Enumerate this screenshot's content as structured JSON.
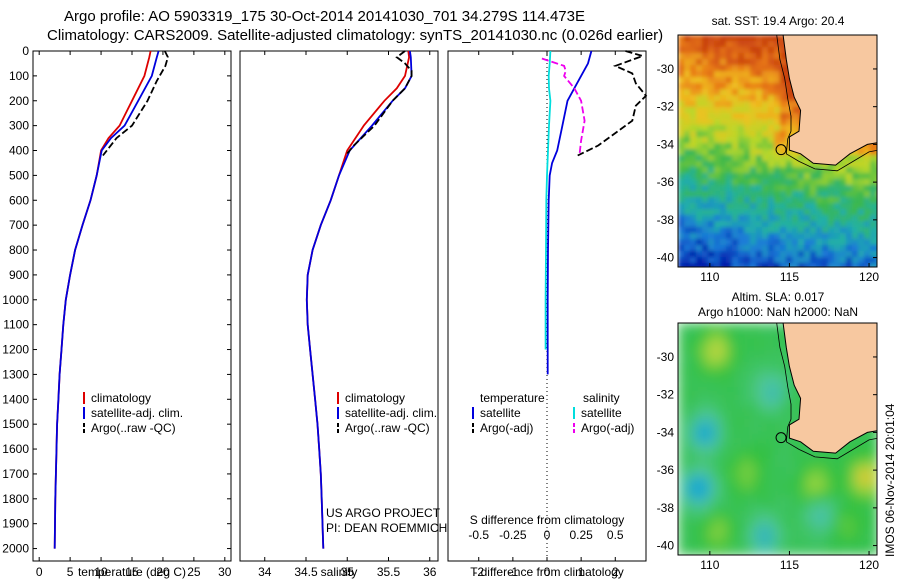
{
  "header": {
    "title_line1": "Argo profile: AO 5903319_175 30-Oct-2014 20141030_701 34.279S 114.473E",
    "title_line2": "Climatology: CARS2009. Satellite-adjusted climatology: synTS_20141030.nc (0.026d earlier)"
  },
  "footer_stamp": "IMOS 06-Nov-2014 20:01:04",
  "colors": {
    "climatology": "#dd0000",
    "satellite": "#0000dd",
    "argo": "#000000",
    "salinity_satellite": "#00dddd",
    "salinity_argo": "#ee00ee",
    "land": "#f7c8a0"
  },
  "chart_data": [
    {
      "type": "line",
      "id": "temperature_profile",
      "xlabel": "temperature (deg C)",
      "ylabel": "",
      "xlim": [
        -1,
        31
      ],
      "ylim": [
        2050,
        0
      ],
      "xticks": [
        0,
        5,
        10,
        15,
        20,
        25,
        30
      ],
      "yticks": [
        0,
        100,
        200,
        300,
        400,
        500,
        600,
        700,
        800,
        900,
        1000,
        1100,
        1200,
        1300,
        1400,
        1500,
        1600,
        1700,
        1800,
        1900,
        2000
      ],
      "legend": [
        "climatology",
        "satellite-adj. clim.",
        "Argo(..raw -QC)"
      ],
      "legend_position": "bottom-center",
      "series": [
        {
          "name": "climatology",
          "style": "solid",
          "color": "#dd0000",
          "x": [
            18.0,
            17.8,
            17.0,
            15.0,
            13.0,
            11.2,
            10.0,
            9.3,
            8.3,
            7.0,
            5.8,
            5.0,
            4.3,
            3.9,
            3.6,
            3.3,
            3.1,
            2.9,
            2.8,
            2.7,
            2.6,
            2.5
          ],
          "y": [
            0,
            25,
            100,
            200,
            300,
            350,
            400,
            500,
            600,
            700,
            800,
            900,
            1000,
            1100,
            1200,
            1300,
            1400,
            1500,
            1600,
            1700,
            1800,
            2000
          ]
        },
        {
          "name": "satellite-adj. clim.",
          "style": "solid",
          "color": "#0000dd",
          "x": [
            19.3,
            19.0,
            18.2,
            16.0,
            13.8,
            11.6,
            10.1,
            9.3,
            8.3,
            7.0,
            5.8,
            5.0,
            4.3,
            3.9,
            3.6,
            3.3,
            3.1,
            2.9,
            2.8,
            2.7,
            2.6,
            2.5
          ],
          "y": [
            0,
            25,
            100,
            200,
            300,
            350,
            400,
            500,
            600,
            700,
            800,
            900,
            1000,
            1100,
            1200,
            1300,
            1400,
            1500,
            1600,
            1700,
            1800,
            2000
          ]
        },
        {
          "name": "Argo(..raw -QC)",
          "style": "dashed",
          "color": "#000000",
          "x": [
            20.3,
            20.8,
            20.4,
            19.0,
            17.5,
            15.0,
            12.5,
            10.3
          ],
          "y": [
            0,
            25,
            60,
            120,
            200,
            300,
            350,
            420
          ]
        }
      ]
    },
    {
      "type": "line",
      "id": "salinity_profile",
      "xlabel": "salinity",
      "ylabel": "",
      "xlim": [
        33.7,
        36.1
      ],
      "ylim": [
        2050,
        0
      ],
      "xticks": [
        34,
        34.5,
        35,
        35.5,
        36
      ],
      "legend": [
        "climatology",
        "satellite-adj. clim.",
        "Argo(..raw -QC)"
      ],
      "legend_position": "bottom-center",
      "annotation_lines": [
        "US ARGO PROJECT",
        "PI: DEAN ROEMMICH"
      ],
      "series": [
        {
          "name": "climatology",
          "style": "solid",
          "color": "#dd0000",
          "x": [
            35.74,
            35.75,
            35.7,
            35.6,
            35.45,
            35.2,
            35.0,
            34.9,
            34.8,
            34.68,
            34.58,
            34.52,
            34.51,
            34.52,
            34.55,
            34.58,
            34.61,
            34.64,
            34.66,
            34.68,
            34.69,
            34.71
          ],
          "y": [
            0,
            25,
            100,
            150,
            200,
            300,
            400,
            500,
            600,
            700,
            800,
            900,
            1000,
            1100,
            1200,
            1300,
            1400,
            1500,
            1600,
            1700,
            1800,
            2000
          ]
        },
        {
          "name": "satellite-adj. clim.",
          "style": "solid",
          "color": "#0000dd",
          "x": [
            35.76,
            35.77,
            35.78,
            35.7,
            35.55,
            35.3,
            35.03,
            34.9,
            34.8,
            34.68,
            34.58,
            34.52,
            34.51,
            34.52,
            34.55,
            34.58,
            34.61,
            34.64,
            34.66,
            34.68,
            34.69,
            34.71
          ],
          "y": [
            0,
            25,
            100,
            150,
            200,
            300,
            400,
            500,
            600,
            700,
            800,
            900,
            1000,
            1100,
            1200,
            1300,
            1400,
            1500,
            1600,
            1700,
            1800,
            2000
          ]
        },
        {
          "name": "Argo(..raw -QC)",
          "style": "dashed",
          "color": "#000000",
          "x": [
            35.7,
            35.6,
            35.7,
            35.78,
            35.78,
            35.7,
            35.55,
            35.33,
            35.08,
            34.98
          ],
          "y": [
            0,
            25,
            50,
            80,
            100,
            150,
            200,
            300,
            380,
            420
          ]
        }
      ]
    },
    {
      "type": "line",
      "id": "difference_profile",
      "xlabel": "T difference from climatology",
      "xlabel_top": "S difference from climatology",
      "xlim": [
        -2.9,
        2.9
      ],
      "ylim": [
        2050,
        0
      ],
      "xticks": [
        -2,
        -1,
        0,
        1,
        2
      ],
      "xticks_salinity": [
        -0.5,
        -0.25,
        0,
        0.25,
        0.5
      ],
      "legend_title_temperature": "temperature",
      "legend_title_salinity": "salinity",
      "legend": [
        "satellite",
        "Argo(-adj)",
        "satellite",
        "Argo(-adj)"
      ],
      "legend_position": "bottom",
      "series": [
        {
          "name": "satellite",
          "group": "temperature",
          "style": "solid",
          "color": "#0000dd",
          "x": [
            1.3,
            1.2,
            1.0,
            0.8,
            0.6,
            0.45,
            0.3,
            0.15,
            0.08,
            0.05,
            0.03,
            0.02,
            0.02,
            0.02
          ],
          "y": [
            0,
            50,
            100,
            150,
            200,
            300,
            400,
            450,
            500,
            600,
            800,
            1000,
            1200,
            1300
          ]
        },
        {
          "name": "satellite",
          "group": "salinity",
          "style": "solid",
          "color": "#00dddd",
          "x": [
            0.1,
            0.08,
            0.05,
            0.06,
            0.1,
            0.06,
            0.03,
            0.0,
            -0.02,
            -0.03,
            -0.04,
            -0.04
          ],
          "y": [
            0,
            50,
            100,
            150,
            200,
            300,
            400,
            500,
            600,
            800,
            1000,
            1200
          ]
        },
        {
          "name": "Argo(-adj)",
          "group": "temperature",
          "style": "dashed",
          "color": "#000000",
          "x": [
            2.3,
            2.8,
            2.0,
            2.5,
            2.6,
            2.9,
            2.6,
            2.5,
            2.0,
            1.5,
            0.9
          ],
          "y": [
            0,
            20,
            60,
            90,
            130,
            180,
            220,
            280,
            330,
            380,
            420
          ]
        },
        {
          "name": "Argo(-adj)",
          "group": "salinity",
          "style": "dashed",
          "color": "#ee00ee",
          "x": [
            -0.15,
            0.5,
            0.55,
            0.5,
            0.8,
            1.0,
            1.1,
            1.0,
            0.95
          ],
          "y": [
            30,
            60,
            80,
            100,
            150,
            200,
            280,
            360,
            420
          ]
        }
      ]
    },
    {
      "type": "heatmap",
      "id": "sst_map",
      "title": "sat. SST: 19.4  Argo: 20.4",
      "xlim": [
        108,
        120.5
      ],
      "ylim": [
        -40.5,
        -28.2
      ],
      "xticks": [
        110,
        115,
        120
      ],
      "yticks": [
        -30,
        -32,
        -34,
        -36,
        -38,
        -40
      ],
      "argo_position": [
        114.473,
        -34.279
      ],
      "colormap": [
        "#0018a8",
        "#1a7ad8",
        "#21b0a8",
        "#3cb84a",
        "#b8d82a",
        "#f0c020",
        "#e87818",
        "#c84010"
      ]
    },
    {
      "type": "heatmap",
      "id": "sla_map",
      "title": "Altim. SLA: 0.017",
      "subtitle": "Argo h1000: NaN h2000: NaN",
      "xlim": [
        108,
        120.5
      ],
      "ylim": [
        -40.5,
        -28.2
      ],
      "xticks": [
        110,
        115,
        120
      ],
      "yticks": [
        -30,
        -32,
        -34,
        -36,
        -38,
        -40
      ],
      "argo_position": [
        114.473,
        -34.279
      ],
      "colormap": [
        "#18a8d0",
        "#52c898",
        "#30c040",
        "#a8d840",
        "#e8c030",
        "#e89030"
      ]
    }
  ]
}
